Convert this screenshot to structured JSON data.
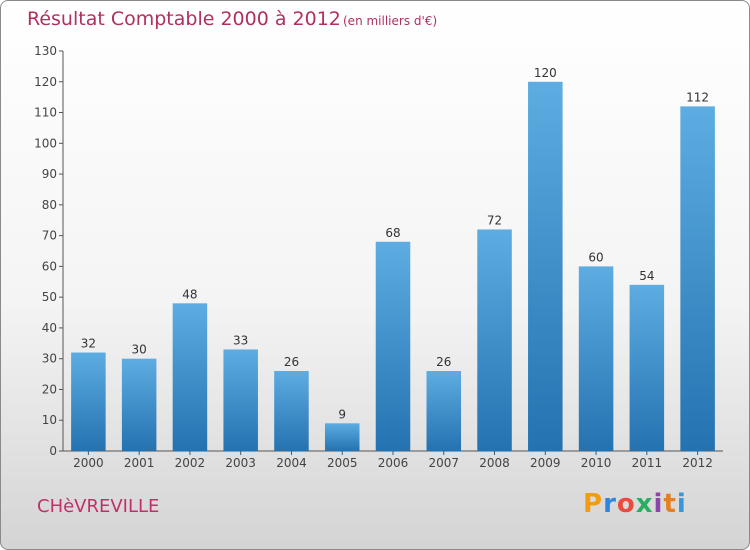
{
  "header": {
    "title": "Résultat Comptable 2000 à 2012",
    "unit": "(en milliers d'€)"
  },
  "footer": {
    "commune": "CHèVREVILLE",
    "logo": "Proxiti",
    "logo_letters": [
      {
        "ch": "P",
        "color": "#f39c12"
      },
      {
        "ch": "r",
        "color": "#2e86de"
      },
      {
        "ch": "o",
        "color": "#e74c3c"
      },
      {
        "ch": "x",
        "color": "#27ae60"
      },
      {
        "ch": "i",
        "color": "#8e44ad"
      },
      {
        "ch": "t",
        "color": "#e67e22"
      },
      {
        "ch": "i",
        "color": "#3498db"
      }
    ]
  },
  "colors": {
    "bar_top": "#5dade2",
    "bar_bottom": "#2472b0",
    "title": "#b03060"
  },
  "chart_data": {
    "type": "bar",
    "title": "Résultat Comptable 2000 à 2012",
    "subtitle": "(en milliers d'€)",
    "categories": [
      "2000",
      "2001",
      "2002",
      "2003",
      "2004",
      "2005",
      "2006",
      "2007",
      "2008",
      "2009",
      "2010",
      "2011",
      "2012"
    ],
    "values": [
      32,
      30,
      48,
      33,
      26,
      9,
      68,
      26,
      72,
      120,
      60,
      54,
      112
    ],
    "ylim": [
      0,
      130
    ],
    "yticks": [
      0,
      10,
      20,
      30,
      40,
      50,
      60,
      70,
      80,
      90,
      100,
      110,
      120,
      130
    ],
    "grid": false,
    "data_labels": true
  }
}
